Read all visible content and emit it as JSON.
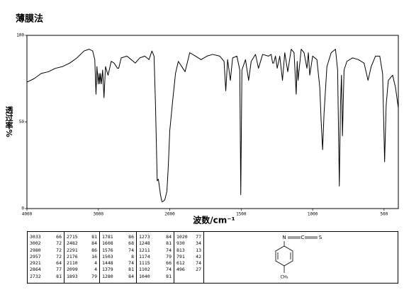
{
  "chart_data": {
    "type": "line",
    "title": "薄膜法",
    "xlabel": "波数/cm⁻¹",
    "ylabel": "透过率%",
    "color": "#000000",
    "xlim": [
      4000,
      400
    ],
    "xticks": [
      4000,
      3000,
      2000,
      1500,
      1000,
      500
    ],
    "ylim": [
      0,
      100
    ],
    "yticks": [
      0,
      50,
      100
    ],
    "x": [
      4000,
      3900,
      3800,
      3700,
      3600,
      3500,
      3400,
      3300,
      3200,
      3130,
      3080,
      3050,
      3033,
      3020,
      3002,
      2990,
      2980,
      2970,
      2957,
      2940,
      2921,
      2900,
      2864,
      2820,
      2780,
      2732,
      2715,
      2680,
      2600,
      2540,
      2482,
      2420,
      2350,
      2291,
      2250,
      2220,
      2200,
      2176,
      2160,
      2130,
      2110,
      2099,
      2070,
      2040,
      2020,
      2000,
      1980,
      1960,
      1940,
      1893,
      1860,
      1820,
      1781,
      1740,
      1700,
      1650,
      1620,
      1608,
      1595,
      1576,
      1560,
      1530,
      1510,
      1503,
      1495,
      1470,
      1448,
      1430,
      1400,
      1379,
      1350,
      1310,
      1290,
      1280,
      1273,
      1260,
      1248,
      1230,
      1211,
      1195,
      1174,
      1150,
      1130,
      1115,
      1108,
      1102,
      1080,
      1060,
      1040,
      1030,
      1020,
      1000,
      970,
      950,
      940,
      930,
      920,
      900,
      870,
      840,
      825,
      813,
      805,
      798,
      791,
      780,
      760,
      720,
      680,
      640,
      612,
      590,
      560,
      530,
      510,
      496,
      485,
      470,
      440,
      420,
      400
    ],
    "values": [
      73,
      75,
      78,
      79,
      81,
      82,
      84,
      87,
      91,
      92,
      91,
      86,
      66,
      82,
      72,
      78,
      72,
      78,
      72,
      80,
      64,
      82,
      77,
      85,
      84,
      81,
      81,
      87,
      88,
      86,
      84,
      87,
      88,
      86,
      91,
      88,
      60,
      16,
      17,
      8,
      4,
      4,
      5,
      10,
      25,
      45,
      62,
      78,
      85,
      79,
      90,
      88,
      86,
      88,
      89,
      88,
      85,
      68,
      86,
      74,
      87,
      88,
      80,
      8,
      80,
      86,
      74,
      85,
      89,
      81,
      89,
      88,
      89,
      84,
      84,
      88,
      81,
      88,
      74,
      90,
      79,
      92,
      90,
      66,
      85,
      74,
      92,
      90,
      81,
      90,
      77,
      88,
      86,
      70,
      50,
      34,
      55,
      82,
      90,
      92,
      80,
      13,
      60,
      77,
      42,
      80,
      85,
      87,
      86,
      84,
      74,
      82,
      88,
      88,
      78,
      27,
      60,
      74,
      77,
      70,
      58
    ]
  },
  "table": {
    "columns": [
      [
        [
          3033,
          66
        ],
        [
          3002,
          72
        ],
        [
          2980,
          72
        ],
        [
          2957,
          72
        ],
        [
          2921,
          64
        ],
        [
          2864,
          77
        ],
        [
          2732,
          81
        ]
      ],
      [
        [
          2715,
          81
        ],
        [
          2482,
          84
        ],
        [
          2291,
          86
        ],
        [
          2176,
          16
        ],
        [
          2110,
          4
        ],
        [
          2099,
          4
        ],
        [
          1893,
          79
        ]
      ],
      [
        [
          1781,
          86
        ],
        [
          1608,
          68
        ],
        [
          1576,
          74
        ],
        [
          1503,
          8
        ],
        [
          1448,
          74
        ],
        [
          1379,
          81
        ],
        [
          1280,
          84
        ]
      ],
      [
        [
          1273,
          84
        ],
        [
          1248,
          81
        ],
        [
          1211,
          74
        ],
        [
          1174,
          79
        ],
        [
          1115,
          66
        ],
        [
          1102,
          74
        ],
        [
          1040,
          81
        ]
      ],
      [
        [
          1020,
          77
        ],
        [
          930,
          34
        ],
        [
          813,
          13
        ],
        [
          791,
          42
        ],
        [
          612,
          74
        ],
        [
          496,
          27
        ]
      ]
    ]
  },
  "structure": {
    "atoms": [
      "N",
      "C",
      "S",
      "CH₃"
    ]
  }
}
